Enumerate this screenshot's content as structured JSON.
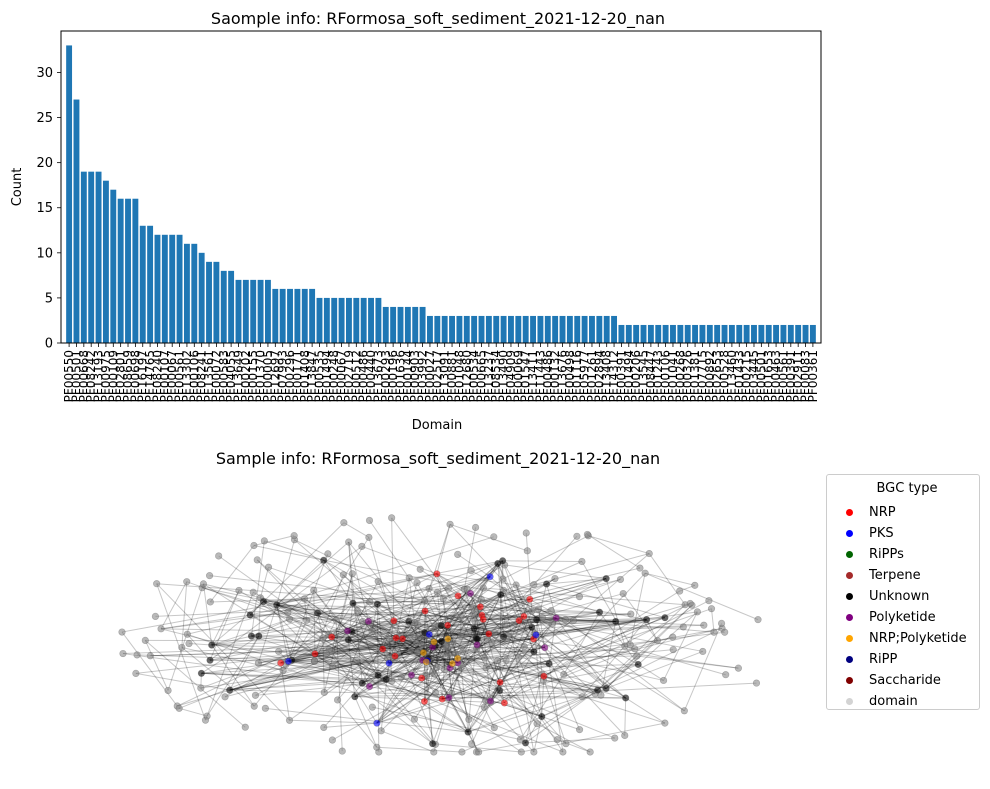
{
  "chart_data": [
    {
      "type": "bar",
      "title": "Saomple info: RFormosa_soft_sediment_2021-12-20_nan",
      "xlabel": "Domain",
      "ylabel": "Count",
      "ylim": [
        0,
        34.6
      ],
      "yticks": [
        0,
        5,
        10,
        15,
        20,
        25,
        30
      ],
      "bar_color": "#1f77b4",
      "categories": [
        "PF00550",
        "PF00501",
        "PF00668",
        "PF08242",
        "PF13193",
        "PF00975",
        "PF00109",
        "PF02801",
        "PF08659",
        "PF00698",
        "PF16197",
        "PF14765",
        "PF08240",
        "PF00107",
        "PF00067",
        "PF00561",
        "PF13302",
        "PF00106",
        "PF08241",
        "PF13561",
        "PF00072",
        "PF00583",
        "PF04055",
        "PF13649",
        "PF00202",
        "PF00155",
        "PF01370",
        "PF00005",
        "PF12697",
        "PF07993",
        "PF00296",
        "PF00171",
        "PF01408",
        "PF13847",
        "PF00535",
        "PF01494",
        "PF00248",
        "PF00067",
        "PF02719",
        "PF00512",
        "PF00486",
        "PF00440",
        "PF13673",
        "PF00293",
        "PF00196",
        "PF01636",
        "PF00144",
        "PF00903",
        "PF03992",
        "PF00027",
        "PF02517",
        "PF13091",
        "PF00881",
        "PF01048",
        "PF12680",
        "PF00534",
        "PF00665",
        "PF13237",
        "PF08534",
        "PF13490",
        "PF04909",
        "PF00069",
        "PF01547",
        "PF13411",
        "PF11443",
        "PF00486",
        "PF00132",
        "PF13676",
        "PF00498",
        "PF01116",
        "PF05977",
        "PF01261",
        "PF02894",
        "PF13408",
        "PF14312",
        "PF00391",
        "PF01494",
        "PF00206",
        "PF13545",
        "PF08447",
        "PF01243",
        "PF00106",
        "PF01041",
        "PF00268",
        "PF00326",
        "PF01381",
        "PF07715",
        "PF00892",
        "PF02653",
        "PF00528",
        "PF13460",
        "PF01433",
        "PF00215",
        "PF03445",
        "PF00501",
        "PF01653",
        "PF00463",
        "PF00561",
        "PF00391",
        "PF02911",
        "PF00083",
        "PF00361"
      ],
      "values": [
        33,
        27,
        19,
        19,
        19,
        18,
        17,
        16,
        16,
        16,
        13,
        13,
        12,
        12,
        12,
        12,
        11,
        11,
        10,
        9,
        9,
        8,
        8,
        7,
        7,
        7,
        7,
        7,
        6,
        6,
        6,
        6,
        6,
        6,
        5,
        5,
        5,
        5,
        5,
        5,
        5,
        5,
        5,
        4,
        4,
        4,
        4,
        4,
        4,
        3,
        3,
        3,
        3,
        3,
        3,
        3,
        3,
        3,
        3,
        3,
        3,
        3,
        3,
        3,
        3,
        3,
        3,
        3,
        3,
        3,
        3,
        3,
        3,
        3,
        3,
        2,
        2,
        2,
        2,
        2,
        2,
        2,
        2,
        2,
        2,
        2,
        2,
        2,
        2,
        2,
        2,
        2,
        2,
        2,
        2,
        2,
        2,
        2,
        2,
        2,
        2,
        2
      ]
    },
    {
      "type": "network",
      "title": "Sample info: RFormosa_soft_sediment_2021-12-20_nan",
      "legend_title": "BGC type",
      "legend_placement": "outside-right",
      "legend": [
        {
          "label": "NRP",
          "color": "#ff0000"
        },
        {
          "label": "PKS",
          "color": "#0000ff"
        },
        {
          "label": "RiPPs",
          "color": "#006400"
        },
        {
          "label": "Terpene",
          "color": "#a52a2a"
        },
        {
          "label": "Unknown",
          "color": "#000000"
        },
        {
          "label": "Polyketide",
          "color": "#800080"
        },
        {
          "label": "NRP;Polyketide",
          "color": "#ffa500"
        },
        {
          "label": "RiPP",
          "color": "#000080"
        },
        {
          "label": "Saccharide",
          "color": "#800000"
        },
        {
          "label": "domain",
          "color": "#d3d3d3"
        }
      ],
      "node_counts": {
        "domain": 240,
        "Unknown": 52,
        "NRP": 26,
        "Polyketide": 14,
        "PKS": 7,
        "NRP;Polyketide": 6
      },
      "edge_color": "#000000"
    }
  ]
}
